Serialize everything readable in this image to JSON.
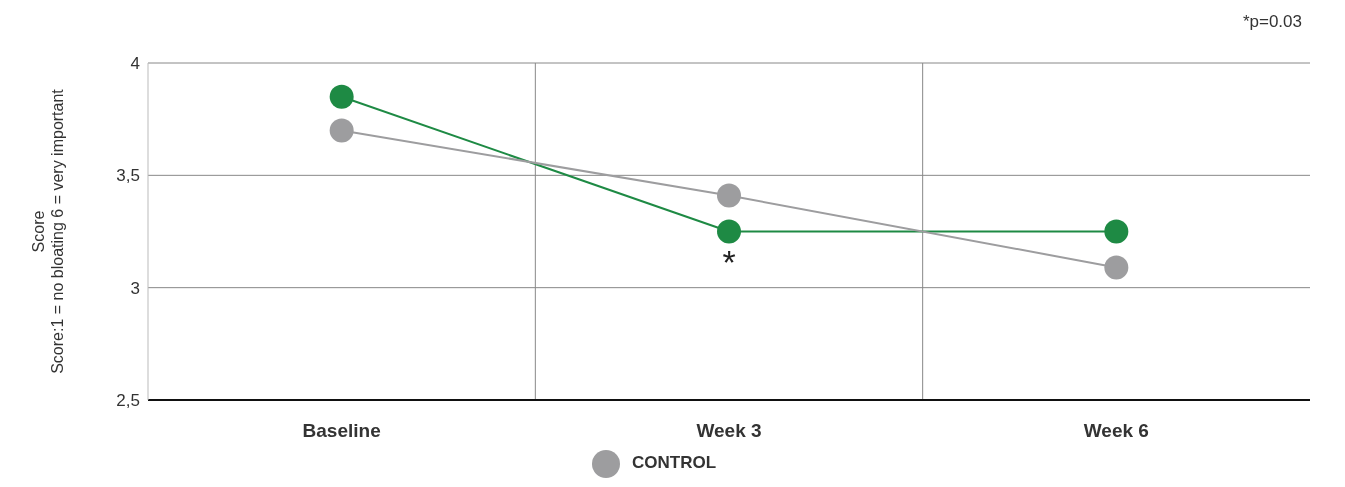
{
  "chart_data": {
    "type": "line",
    "ylabel": "Score\nScore:1 = no bloating 6 = very important",
    "categories": [
      "Baseline",
      "Week 3",
      "Week 6"
    ],
    "series": [
      {
        "color": "#1e8a44",
        "values": [
          3.85,
          3.25,
          3.25
        ]
      },
      {
        "name": "CONTROL",
        "color": "#9d9d9f",
        "values": [
          3.7,
          3.41,
          3.09
        ]
      }
    ],
    "ylim": [
      2.5,
      4
    ],
    "yticks": [
      {
        "value": 2.5,
        "label": "2,5"
      },
      3,
      {
        "value": 3.5,
        "label": "3,5"
      },
      4
    ],
    "grid": true,
    "legend": "bottom",
    "marker": "circle",
    "line_style": "solid",
    "annotations": [
      "*p=0.03",
      {
        "text": "*",
        "x": "Week 3",
        "y": 3.25
      }
    ]
  }
}
